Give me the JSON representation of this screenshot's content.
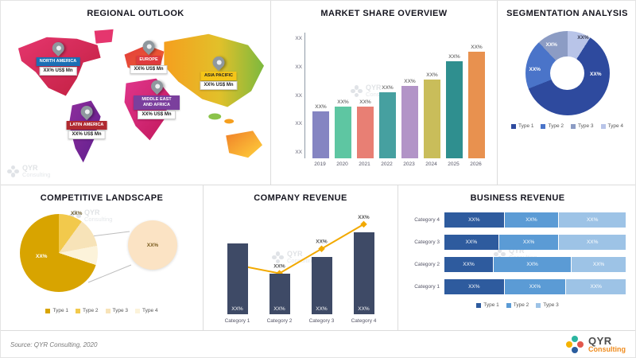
{
  "panels": {
    "regional": {
      "title": "REGIONAL OUTLOOK"
    },
    "market_share": {
      "title": "MARKET SHARE OVERVIEW"
    },
    "segmentation": {
      "title": "SEGMENTATION ANALYSIS"
    },
    "competitive": {
      "title": "COMPETITIVE LANDSCAPE"
    },
    "company_revenue": {
      "title": "COMPANY REVENUE"
    },
    "business_revenue": {
      "title": "BUSINESS REVENUE"
    }
  },
  "regions": [
    {
      "name": "NORTH AMERICA",
      "value": "XX% US$ Mn",
      "color": "#1b6fb5",
      "text": "#ffffff"
    },
    {
      "name": "EUROPE",
      "value": "XX% US$ Mn",
      "color": "#e03a3e",
      "text": "#ffffff"
    },
    {
      "name": "ASIA PACIFIC",
      "value": "XX% US$ Mn",
      "color": "#f5c518",
      "text": "#222222"
    },
    {
      "name": "MIDDLE EAST AND AFRICA",
      "value": "XX% US$ Mn",
      "color": "#7b3f9d",
      "text": "#ffffff"
    },
    {
      "name": "LATIN AMERICA",
      "value": "XX% US$ Mn",
      "color": "#b02a30",
      "text": "#ffffff"
    }
  ],
  "chart_data": [
    {
      "type": "bar",
      "title": "MARKET SHARE OVERVIEW",
      "categories": [
        "2019",
        "2020",
        "2021",
        "2022",
        "2023",
        "2024",
        "2025",
        "2026"
      ],
      "values": [
        30,
        33,
        33,
        42,
        46,
        50,
        62,
        68
      ],
      "data_labels": [
        "XX%",
        "XX%",
        "XX%",
        "XX%",
        "XX%",
        "XX%",
        "XX%",
        "XX%"
      ],
      "colors": [
        "#8585c2",
        "#5ec6a2",
        "#e87f74",
        "#46a0a0",
        "#b294c7",
        "#c9bd5a",
        "#2f8f8f",
        "#e8914f"
      ],
      "y_ticks": [
        "XX",
        "XX",
        "XX",
        "XX",
        "XX"
      ],
      "xlabel": "",
      "ylabel": "",
      "ylim": [
        0,
        75
      ],
      "note": "bar heights estimated from pixels; all data labels shown as XX% placeholders"
    },
    {
      "type": "pie",
      "title": "SEGMENTATION ANALYSIS",
      "donut": true,
      "segments": [
        {
          "name": "Type 4",
          "value": 9,
          "color": "#b8c4e8",
          "label": "XX%"
        },
        {
          "name": "Type 1",
          "value": 60,
          "color": "#2e4a9e",
          "label": "XX%"
        },
        {
          "name": "Type 2",
          "value": 19,
          "color": "#4a74c9",
          "label": "XX%"
        },
        {
          "name": "Type 3",
          "value": 12,
          "color": "#8c9cc4",
          "label": "XX%"
        }
      ],
      "legend": [
        "Type 1",
        "Type 2",
        "Type 3",
        "Type 4"
      ],
      "legend_colors": [
        "#2e4a9e",
        "#4a74c9",
        "#8c9cc4",
        "#b8c4e8"
      ],
      "legend_position": "bottom"
    },
    {
      "type": "pie",
      "title": "COMPETITIVE LANDSCAPE",
      "segments": [
        {
          "name": "Type 2",
          "value": 10,
          "color": "#f2c94c",
          "label": ""
        },
        {
          "name": "Type 3",
          "value": 12,
          "color": "#f7e3b8",
          "label": "XX%"
        },
        {
          "name": "Type 4",
          "value": 8,
          "color": "#fcf3da",
          "label": ""
        },
        {
          "name": "Type 1",
          "value": 70,
          "color": "#d8a400",
          "label": "XX%"
        }
      ],
      "callout": {
        "label": "XX%",
        "color": "#fbe3c4"
      },
      "legend": [
        "Type 1",
        "Type 2",
        "Type 3",
        "Type 4"
      ],
      "legend_colors": [
        "#d8a400",
        "#f2c94c",
        "#f7e3b8",
        "#fcf3da"
      ],
      "legend_position": "bottom"
    },
    {
      "type": "bar",
      "title": "COMPANY REVENUE",
      "categories": [
        "Category 1",
        "Category 2",
        "Category 3",
        "Category 4"
      ],
      "series": [
        {
          "name": "bars",
          "kind": "column",
          "values": [
            52,
            30,
            42,
            60
          ],
          "labels": [
            "XX%",
            "XX%",
            "XX%",
            "XX%"
          ],
          "color": "#3e4a66"
        },
        {
          "name": "line",
          "kind": "line",
          "values": [
            36,
            30,
            48,
            66
          ],
          "labels": [
            "XX%",
            "XX%",
            "XX%",
            "XX%"
          ],
          "color": "#f2a900"
        }
      ],
      "ylim": [
        0,
        70
      ],
      "note": "combo column + line chart; all labels are XX% placeholders"
    },
    {
      "type": "bar",
      "title": "BUSINESS REVENUE",
      "orientation": "horizontal-stacked",
      "categories": [
        "Category 4",
        "Category 3",
        "Category 2",
        "Category 1"
      ],
      "series": [
        {
          "name": "Type 1",
          "color": "#2e5b9e",
          "values": [
            33,
            30,
            27,
            33
          ],
          "labels": [
            "XX%",
            "XX%",
            "XX%",
            "XX%"
          ]
        },
        {
          "name": "Type 2",
          "color": "#5b9bd5",
          "values": [
            30,
            33,
            43,
            34
          ],
          "labels": [
            "XX%",
            "XX%",
            "XX%",
            "XX%"
          ]
        },
        {
          "name": "Type 3",
          "color": "#9dc3e6",
          "values": [
            37,
            37,
            30,
            33
          ],
          "labels": [
            "XX%",
            "XX%",
            "XX%",
            "XX%"
          ]
        }
      ],
      "legend": [
        "Type 1",
        "Type 2",
        "Type 3"
      ],
      "legend_position": "bottom"
    }
  ],
  "watermark": {
    "line1": "QYR",
    "line2": "Consulting"
  },
  "footer": {
    "source": "Source: QYR Consulting, 2020",
    "logo_text": "QYR",
    "logo_sub": "Consulting"
  }
}
